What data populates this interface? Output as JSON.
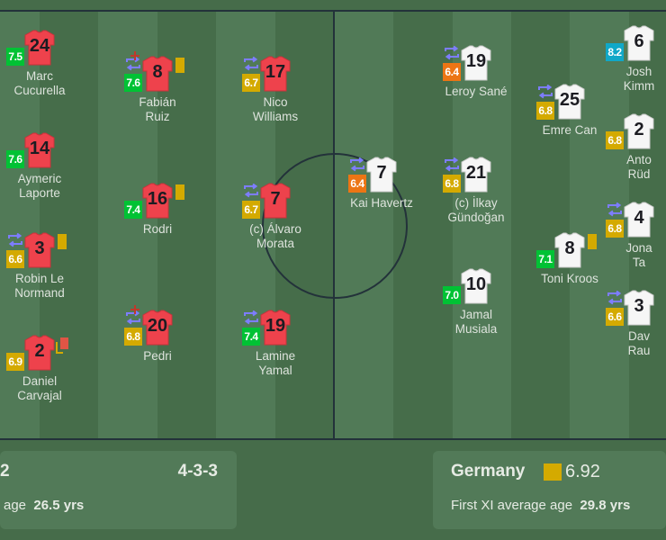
{
  "colors": {
    "rating_green": "#00c234",
    "rating_yellow": "#d4aa00",
    "rating_orange": "#ec7514",
    "rating_teal": "#10a8c8",
    "sub_icon": "#7d7dff",
    "injury_icon": "#c0392b",
    "yellow_card": "#d4aa00",
    "red_card": "#e05545"
  },
  "teams": {
    "home": {
      "kit": "#ee424c",
      "kit_border": "#c8323a",
      "players": [
        {
          "number": "24",
          "name": [
            "Marc",
            "Cucurella"
          ],
          "rating": "7.5",
          "rating_color": "green",
          "sub": false,
          "injury": false,
          "card": null
        },
        {
          "number": "14",
          "name": [
            "Aymeric",
            "Laporte"
          ],
          "rating": "7.6",
          "rating_color": "green",
          "sub": false,
          "injury": false,
          "card": null
        },
        {
          "number": "3",
          "name": [
            "Robin Le",
            "Normand"
          ],
          "rating": "6.6",
          "rating_color": "yellow",
          "sub": true,
          "injury": false,
          "card": "yellow"
        },
        {
          "number": "2",
          "name": [
            "Daniel",
            "Carvajal"
          ],
          "rating": "6.9",
          "rating_color": "yellow",
          "sub": false,
          "injury": false,
          "card": "second-yellow"
        },
        {
          "number": "8",
          "name": [
            "Fabián",
            "Ruiz"
          ],
          "rating": "7.6",
          "rating_color": "green",
          "sub": true,
          "injury": true,
          "card": "yellow"
        },
        {
          "number": "16",
          "name": [
            "Rodri"
          ],
          "rating": "7.4",
          "rating_color": "green",
          "sub": false,
          "injury": false,
          "card": "yellow"
        },
        {
          "number": "20",
          "name": [
            "Pedri"
          ],
          "rating": "6.8",
          "rating_color": "yellow",
          "sub": true,
          "injury": true,
          "card": null
        },
        {
          "number": "17",
          "name": [
            "Nico",
            "Williams"
          ],
          "rating": "6.7",
          "rating_color": "yellow",
          "sub": true,
          "injury": false,
          "card": null
        },
        {
          "number": "7",
          "name": [
            "(c) Álvaro",
            "Morata"
          ],
          "rating": "6.7",
          "rating_color": "yellow",
          "sub": true,
          "injury": false,
          "card": null
        },
        {
          "number": "19",
          "name": [
            "Lamine",
            "Yamal"
          ],
          "rating": "7.4",
          "rating_color": "green",
          "sub": true,
          "injury": false,
          "card": null
        }
      ]
    },
    "away": {
      "kit": "#f6f6f6",
      "kit_border": "#c9c9c9",
      "players": [
        {
          "number": "7",
          "name": [
            "Kai Havertz"
          ],
          "rating": "6.4",
          "rating_color": "orange",
          "sub": true,
          "injury": false,
          "card": null
        },
        {
          "number": "19",
          "name": [
            "Leroy Sané"
          ],
          "rating": "6.4",
          "rating_color": "orange",
          "sub": true,
          "injury": false,
          "card": null
        },
        {
          "number": "21",
          "name": [
            "(c) İlkay",
            "Gündoğan"
          ],
          "rating": "6.8",
          "rating_color": "yellow",
          "sub": true,
          "injury": false,
          "card": null
        },
        {
          "number": "10",
          "name": [
            "Jamal",
            "Musiala"
          ],
          "rating": "7.0",
          "rating_color": "green",
          "sub": false,
          "injury": false,
          "card": null
        },
        {
          "number": "25",
          "name": [
            "Emre Can"
          ],
          "rating": "6.8",
          "rating_color": "yellow",
          "sub": true,
          "injury": false,
          "card": null
        },
        {
          "number": "8",
          "name": [
            "Toni Kroos"
          ],
          "rating": "7.1",
          "rating_color": "green",
          "sub": false,
          "injury": false,
          "card": "yellow"
        },
        {
          "number": "6",
          "name": [
            "Josh",
            "Kimm"
          ],
          "rating": "8.2",
          "rating_color": "teal",
          "sub": false,
          "injury": false,
          "card": null
        },
        {
          "number": "2",
          "name": [
            "Anto",
            "Rüd"
          ],
          "rating": "6.8",
          "rating_color": "yellow",
          "sub": false,
          "injury": false,
          "card": null
        },
        {
          "number": "4",
          "name": [
            "Jona",
            "Ta"
          ],
          "rating": "6.8",
          "rating_color": "yellow",
          "sub": true,
          "injury": false,
          "card": null
        },
        {
          "number": "3",
          "name": [
            "Dav",
            "Rau"
          ],
          "rating": "6.6",
          "rating_color": "yellow",
          "sub": true,
          "injury": false,
          "card": null
        }
      ]
    }
  },
  "summary": {
    "home": {
      "title": "2",
      "formation": "4-3-3",
      "age_label": "age",
      "age_value": "26.5 yrs"
    },
    "away": {
      "team": "Germany",
      "rating": "6.92",
      "age_label": "First XI average age",
      "age_value": "29.8 yrs"
    }
  }
}
